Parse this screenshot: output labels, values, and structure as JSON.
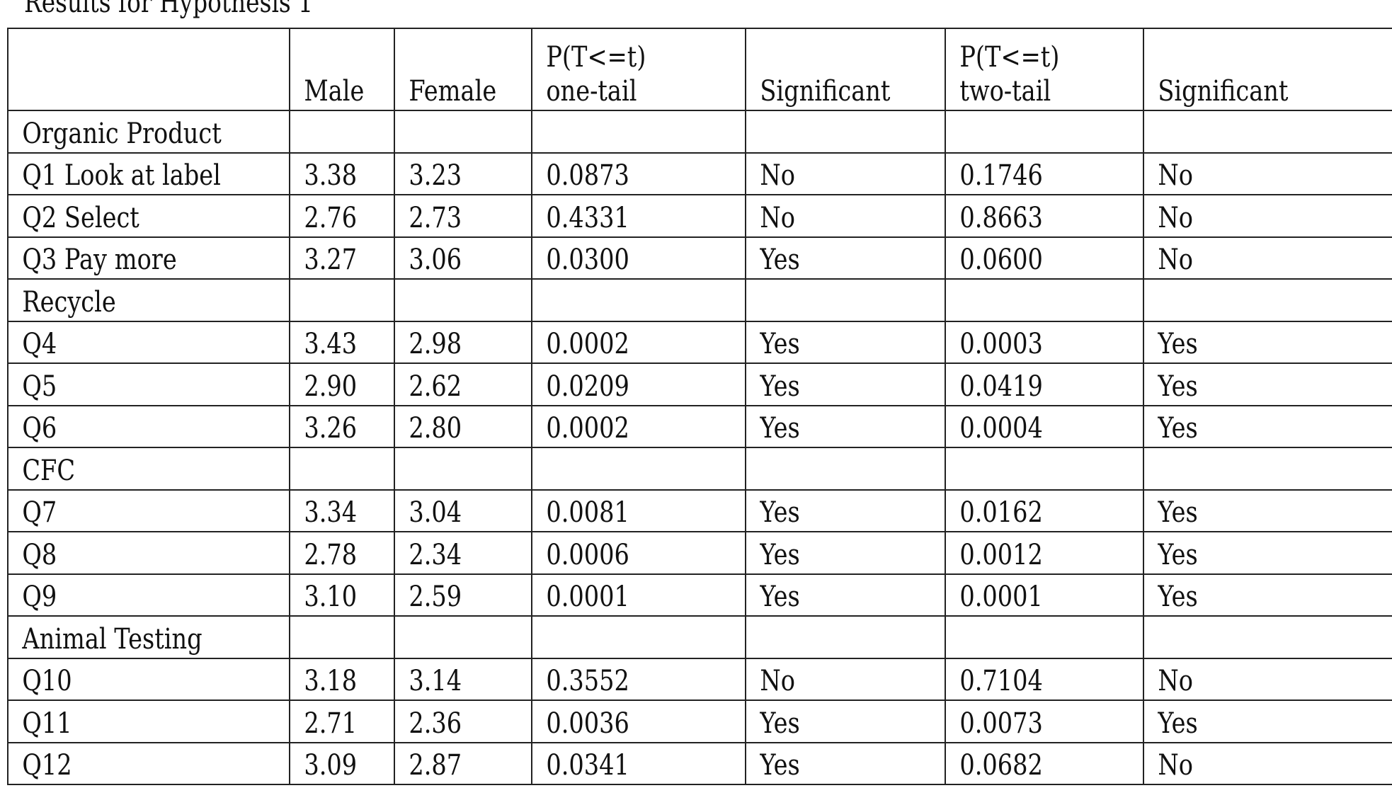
{
  "caption": "Results for Hypothesis 1",
  "header": {
    "label": "",
    "male": "Male",
    "female": "Female",
    "one_tail_line1": "P(T<=t)",
    "one_tail_line2": "one-tail",
    "sig1": "Significant",
    "two_tail_line1": "P(T<=t)",
    "two_tail_line2": "two-tail",
    "sig2": "Significant"
  },
  "rows": [
    {
      "type": "section",
      "label": "Organic Product"
    },
    {
      "type": "data",
      "label": "Q1 Look at label",
      "male": "3.38",
      "female": "3.23",
      "p1": "0.0873",
      "sig1": "No",
      "p2": "0.1746",
      "sig2": "No"
    },
    {
      "type": "data",
      "label": "Q2 Select",
      "male": "2.76",
      "female": "2.73",
      "p1": "0.4331",
      "sig1": "No",
      "p2": "0.8663",
      "sig2": "No"
    },
    {
      "type": "data",
      "label": "Q3 Pay more",
      "male": "3.27",
      "female": "3.06",
      "p1": "0.0300",
      "sig1": "Yes",
      "p2": "0.0600",
      "sig2": "No"
    },
    {
      "type": "section",
      "label": "Recycle"
    },
    {
      "type": "data",
      "label": "Q4",
      "male": "3.43",
      "female": "2.98",
      "p1": "0.0002",
      "sig1": "Yes",
      "p2": "0.0003",
      "sig2": "Yes"
    },
    {
      "type": "data",
      "label": "Q5",
      "male": "2.90",
      "female": "2.62",
      "p1": "0.0209",
      "sig1": "Yes",
      "p2": "0.0419",
      "sig2": "Yes"
    },
    {
      "type": "data",
      "label": "Q6",
      "male": "3.26",
      "female": "2.80",
      "p1": "0.0002",
      "sig1": "Yes",
      "p2": "0.0004",
      "sig2": "Yes"
    },
    {
      "type": "section",
      "label": "CFC"
    },
    {
      "type": "data",
      "label": "Q7",
      "male": "3.34",
      "female": "3.04",
      "p1": "0.0081",
      "sig1": "Yes",
      "p2": "0.0162",
      "sig2": "Yes"
    },
    {
      "type": "data",
      "label": "Q8",
      "male": "2.78",
      "female": "2.34",
      "p1": "0.0006",
      "sig1": "Yes",
      "p2": "0.0012",
      "sig2": "Yes"
    },
    {
      "type": "data",
      "label": "Q9",
      "male": "3.10",
      "female": "2.59",
      "p1": "0.0001",
      "sig1": "Yes",
      "p2": "0.0001",
      "sig2": "Yes"
    },
    {
      "type": "section",
      "label": "Animal Testing"
    },
    {
      "type": "data",
      "label": "Q10",
      "male": "3.18",
      "female": "3.14",
      "p1": "0.3552",
      "sig1": "No",
      "p2": "0.7104",
      "sig2": "No"
    },
    {
      "type": "data",
      "label": "Q11",
      "male": "2.71",
      "female": "2.36",
      "p1": "0.0036",
      "sig1": "Yes",
      "p2": "0.0073",
      "sig2": "Yes"
    },
    {
      "type": "data",
      "label": "Q12",
      "male": "3.09",
      "female": "2.87",
      "p1": "0.0341",
      "sig1": "Yes",
      "p2": "0.0682",
      "sig2": "No"
    }
  ]
}
